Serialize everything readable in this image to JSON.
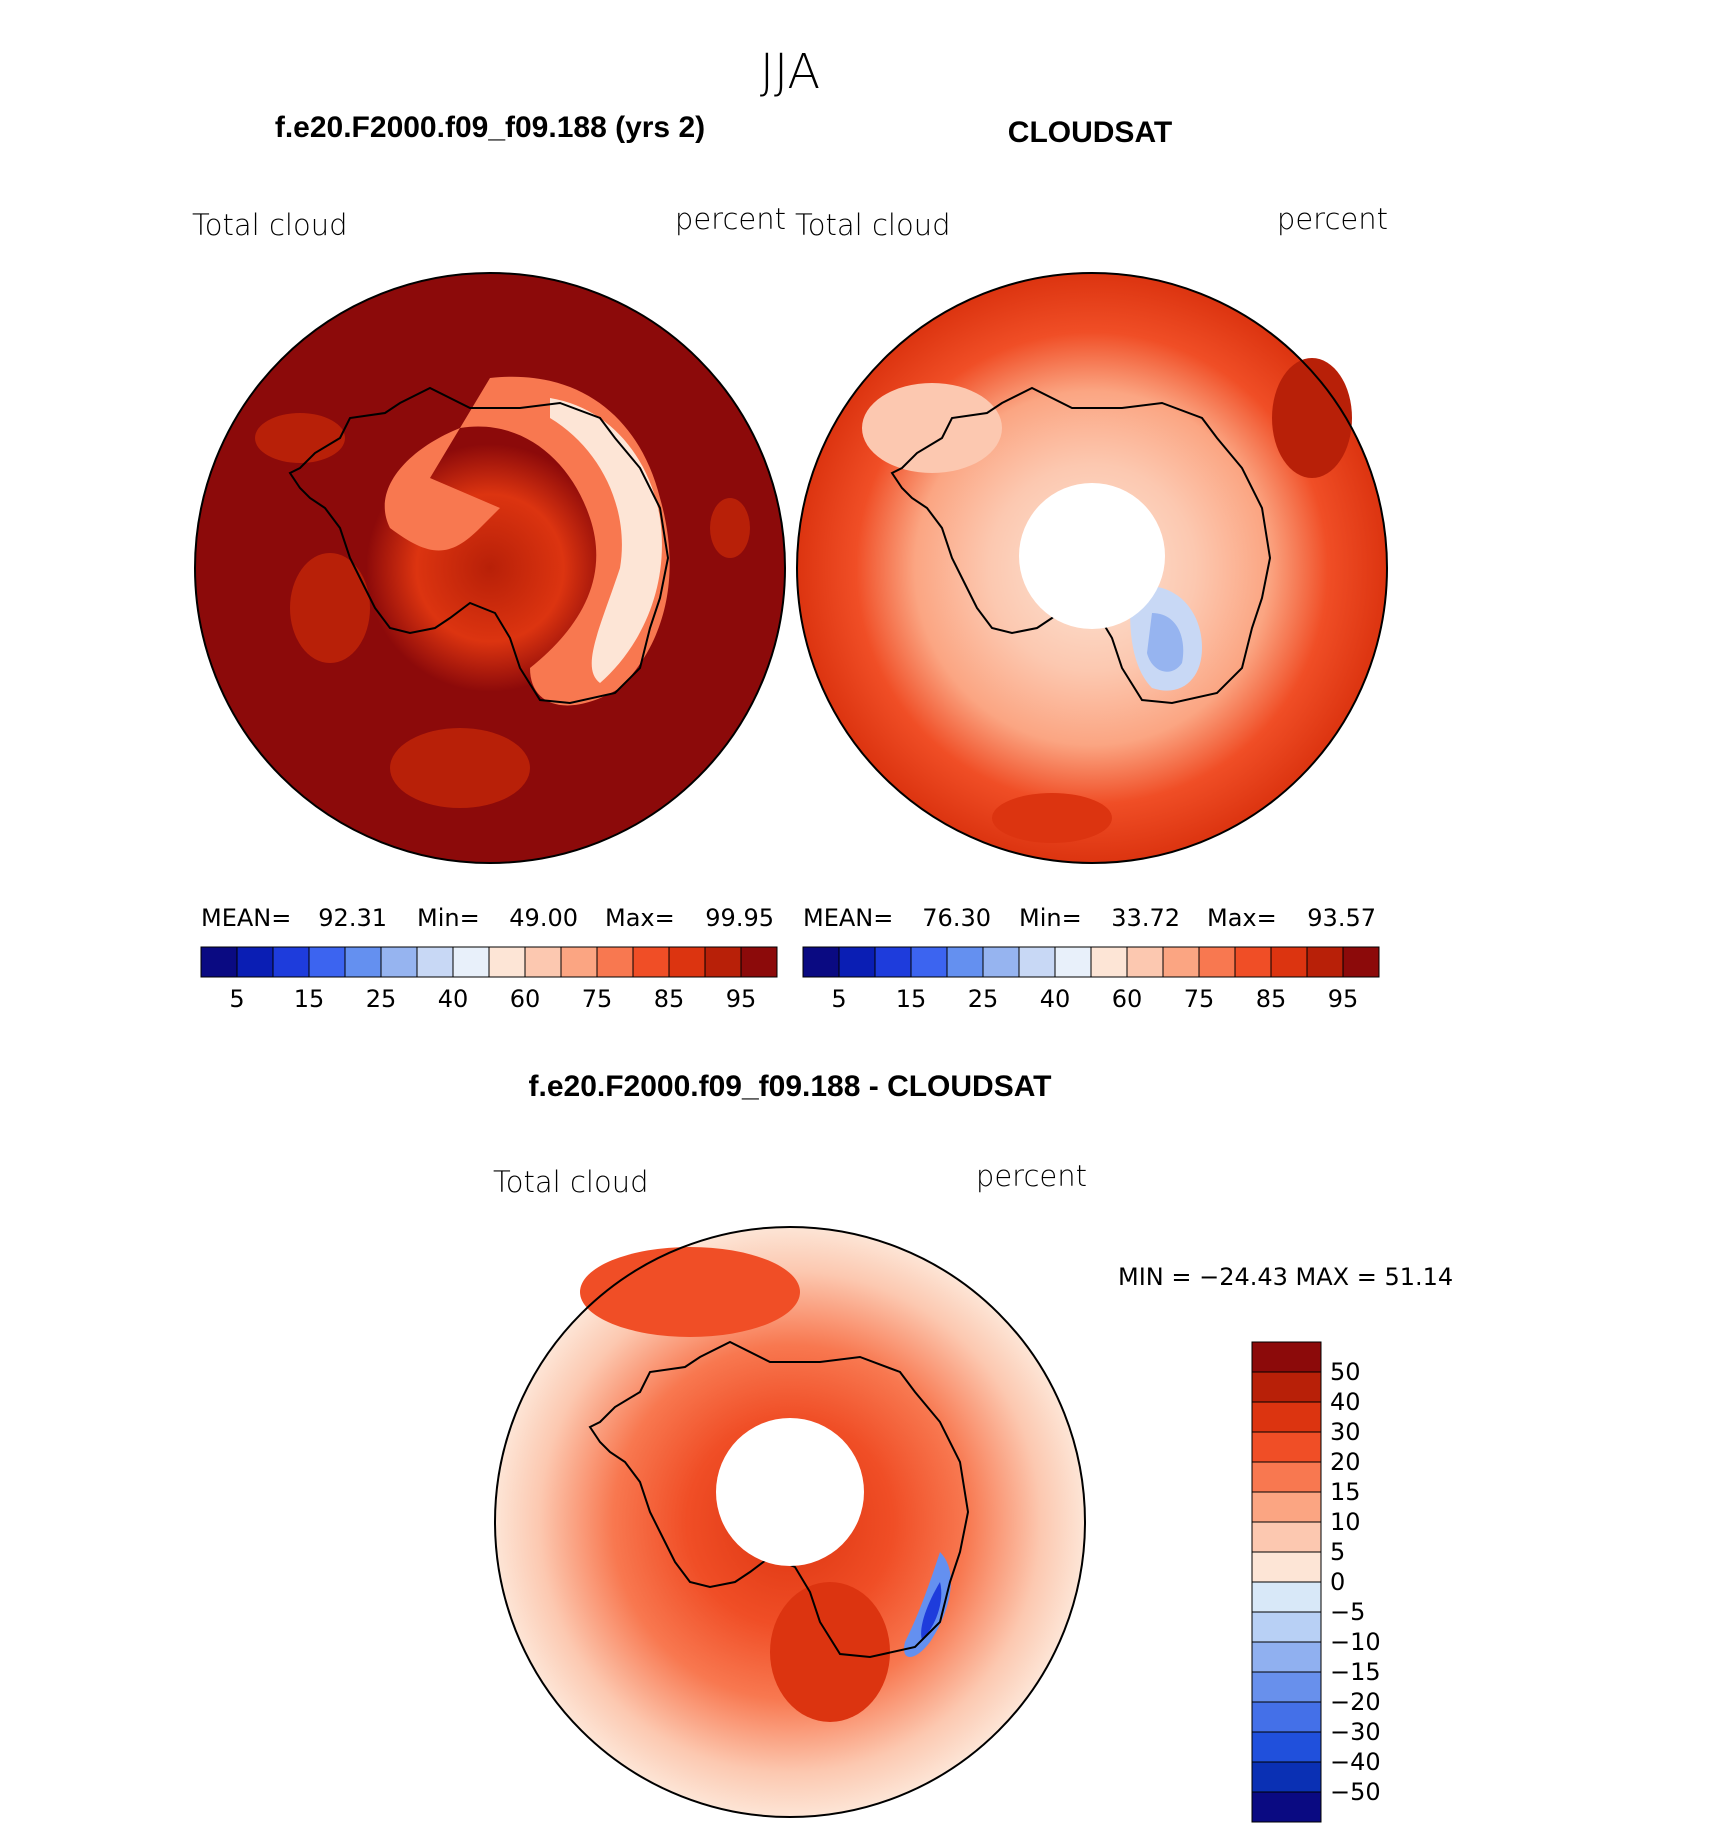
{
  "figure": {
    "season": "JJA",
    "diff_title": "f.e20.F2000.f09_f09.188 - CLOUDSAT"
  },
  "panels": [
    {
      "title": "f.e20.F2000.f09_f09.188 (yrs 2)",
      "left_label": "Total cloud",
      "right_label": "percent",
      "mean_label": "MEAN=",
      "mean": "92.31",
      "min_label": "Min=",
      "min": "49.00",
      "max_label": "Max=",
      "max": "99.95"
    },
    {
      "title": "CLOUDSAT",
      "left_label": "Total cloud",
      "right_label": "percent",
      "mean_label": "MEAN=",
      "mean": "76.30",
      "min_label": "Min=",
      "min": "33.72",
      "max_label": "Max=",
      "max": "93.57"
    }
  ],
  "diff_panel": {
    "left_label": "Total cloud",
    "right_label": "percent",
    "minmax": "MIN = −24.43 MAX =   51.14"
  },
  "colorbar_abs": {
    "colors": [
      "#0a0a82",
      "#0a1eb4",
      "#1e3cdc",
      "#3c64f0",
      "#6490f0",
      "#96b4f0",
      "#c8d8f5",
      "#e8f0fa",
      "#fde5d6",
      "#fcc8b0",
      "#fba582",
      "#f87850",
      "#f04e26",
      "#dc3410",
      "#b82008",
      "#8c0a0a"
    ],
    "ticks": [
      "5",
      "15",
      "25",
      "40",
      "60",
      "75",
      "85",
      "95"
    ]
  },
  "colorbar_diff": {
    "colors": [
      "#8c0a0a",
      "#b82008",
      "#dc3410",
      "#f04e26",
      "#f87850",
      "#fba582",
      "#fcc8b0",
      "#fde5d6",
      "#d8e8f8",
      "#b8d0f5",
      "#90b0f0",
      "#6890ec",
      "#4470e8",
      "#2050dc",
      "#0a30b4",
      "#0a0a82"
    ],
    "labels": [
      "50",
      "40",
      "30",
      "20",
      "15",
      "10",
      "5",
      "0",
      "−5",
      "−10",
      "−15",
      "−20",
      "−30",
      "−40",
      "−50"
    ]
  }
}
